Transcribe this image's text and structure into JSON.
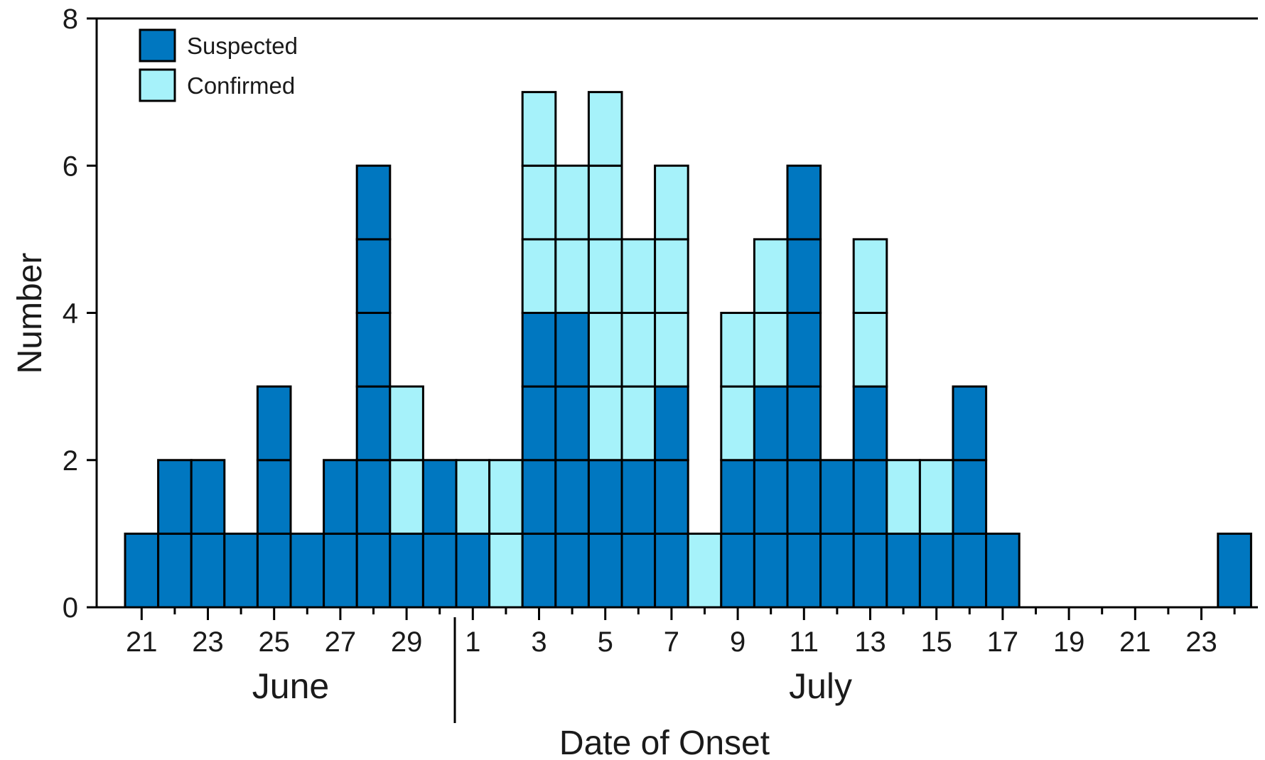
{
  "chart_data": {
    "type": "bar",
    "stacked": true,
    "xlabel": "Date of Onset",
    "ylabel": "Number",
    "ylim": [
      0,
      8
    ],
    "y_ticks": [
      0,
      2,
      4,
      6,
      8
    ],
    "grid": false,
    "legend_position": "top-left",
    "x_tick_labels": [
      "21",
      "23",
      "25",
      "27",
      "29",
      "1",
      "3",
      "5",
      "7",
      "9",
      "11",
      "13",
      "15",
      "17",
      "19",
      "21",
      "23"
    ],
    "months": [
      "June",
      "July"
    ],
    "categories": [
      "June 21",
      "June 22",
      "June 23",
      "June 24",
      "June 25",
      "June 26",
      "June 27",
      "June 28",
      "June 29",
      "June 30",
      "July 1",
      "July 2",
      "July 3",
      "July 4",
      "July 5",
      "July 6",
      "July 7",
      "July 8",
      "July 9",
      "July 10",
      "July 11",
      "July 12",
      "July 13",
      "July 14",
      "July 15",
      "July 16",
      "July 17",
      "July 18",
      "July 19",
      "July 20",
      "July 21",
      "July 22",
      "July 23",
      "July 24"
    ],
    "series": [
      {
        "name": "Suspected",
        "color": "#0077c0",
        "values": [
          1,
          2,
          2,
          1,
          3,
          1,
          2,
          6,
          1,
          2,
          1,
          0,
          4,
          4,
          2,
          2,
          3,
          0,
          2,
          3,
          6,
          2,
          3,
          1,
          1,
          3,
          1,
          0,
          0,
          0,
          0,
          0,
          0,
          1
        ]
      },
      {
        "name": "Confirmed",
        "color": "#a6f2fa",
        "values": [
          0,
          0,
          0,
          0,
          0,
          0,
          0,
          0,
          2,
          0,
          1,
          2,
          3,
          2,
          5,
          3,
          3,
          1,
          2,
          2,
          0,
          0,
          2,
          1,
          1,
          0,
          0,
          0,
          0,
          0,
          0,
          0,
          0,
          0
        ]
      }
    ]
  }
}
